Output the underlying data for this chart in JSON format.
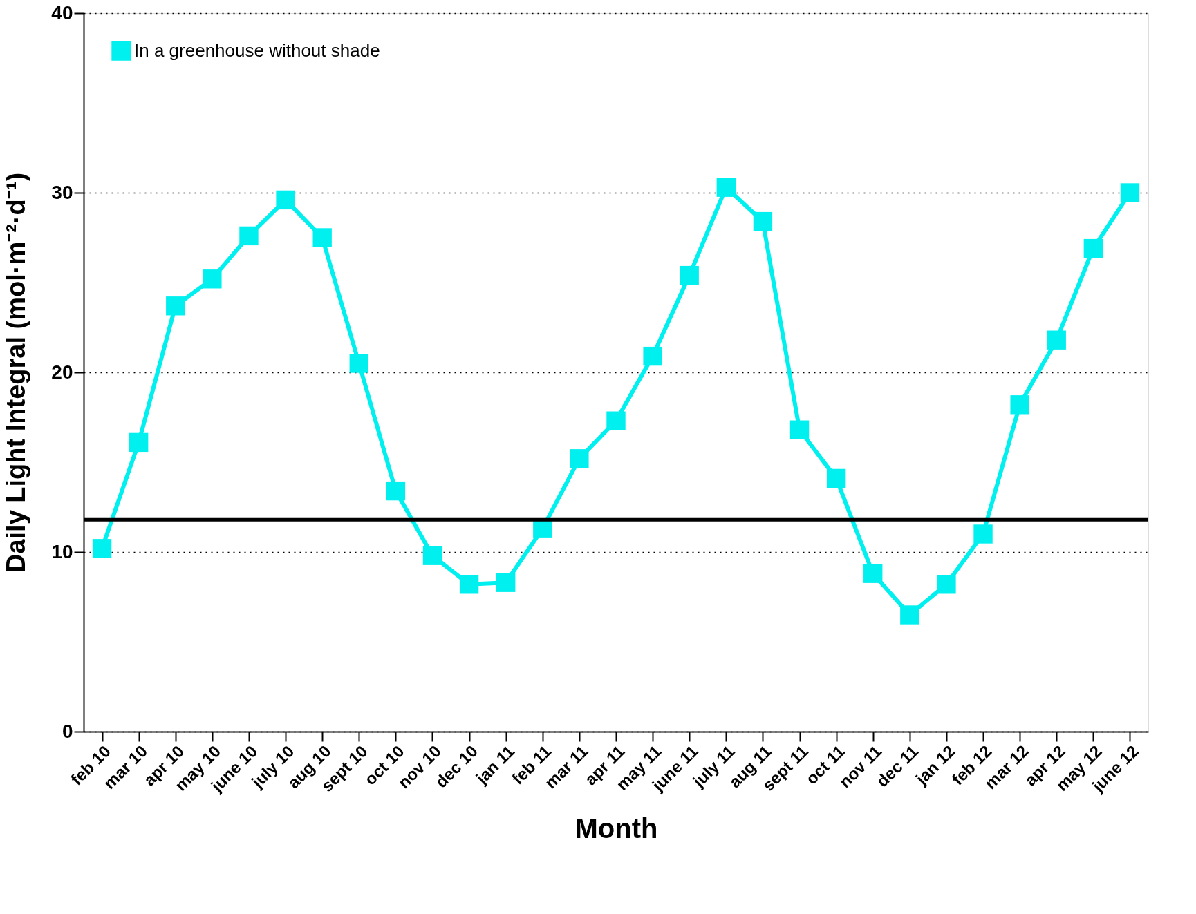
{
  "chart_data": {
    "type": "line",
    "xlabel": "Month",
    "ylabel": "Daily Light Integral (mol·m⁻²·d⁻¹)",
    "categories": [
      "feb 10",
      "mar 10",
      "apr 10",
      "may 10",
      "june 10",
      "july 10",
      "aug 10",
      "sept 10",
      "oct 10",
      "nov 10",
      "dec 10",
      "jan 11",
      "feb 11",
      "mar 11",
      "apr 11",
      "may 11",
      "june 11",
      "july 11",
      "aug 11",
      "sept 11",
      "oct 11",
      "nov 11",
      "dec 11",
      "jan 12",
      "feb 12",
      "mar 12",
      "apr 12",
      "may 12",
      "june 12"
    ],
    "series": [
      {
        "name": "In a greenhouse without shade",
        "color": "#00f0f0",
        "values": [
          10.2,
          16.1,
          23.7,
          25.2,
          27.6,
          29.6,
          27.5,
          20.5,
          13.4,
          9.8,
          8.2,
          8.3,
          11.3,
          15.2,
          17.3,
          20.9,
          25.4,
          30.3,
          28.4,
          16.8,
          14.1,
          8.8,
          6.5,
          8.2,
          11.0,
          18.2,
          21.8,
          26.9,
          30.0
        ]
      }
    ],
    "ylim": [
      0,
      40
    ],
    "yticks": [
      0,
      10,
      20,
      30,
      40
    ],
    "grid": "y",
    "legend": "top left",
    "marker": "square",
    "line_style": "solid",
    "ref_lines": [
      {
        "axis": "y",
        "value": 11.8,
        "color": "#000000"
      }
    ]
  }
}
